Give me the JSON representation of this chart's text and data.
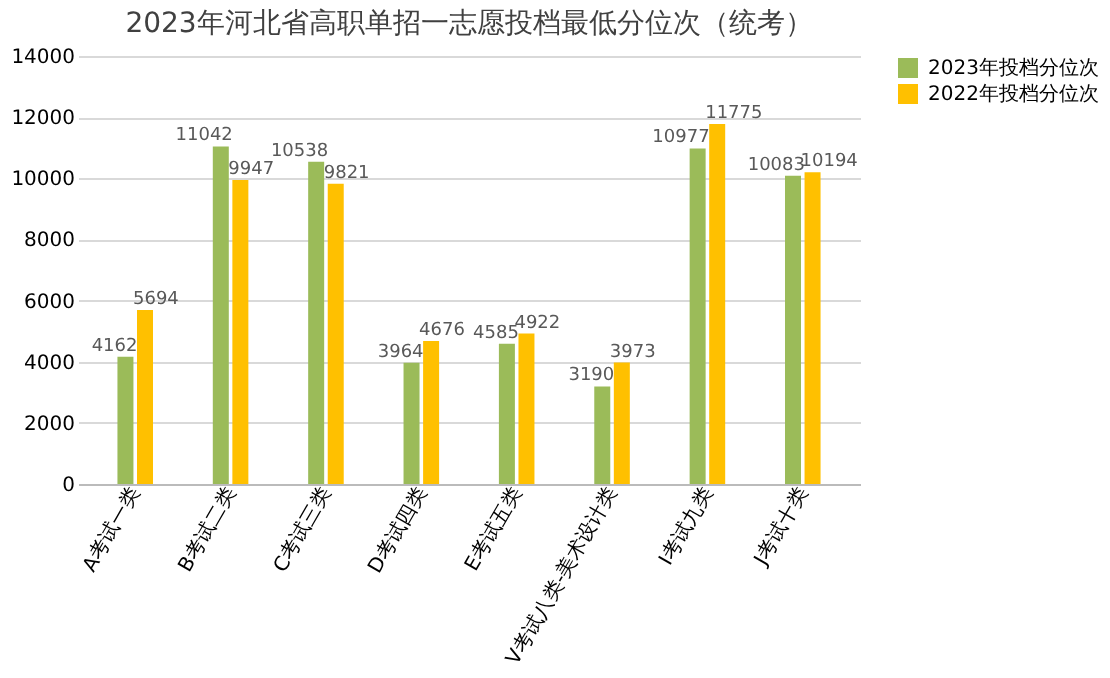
{
  "chart_data": {
    "type": "bar",
    "title": "2023年河北省高职单招一志愿投档最低分位次（统考）",
    "categories": [
      "A考试一类",
      "B考试二类",
      "C考试三类",
      "D考试四类",
      "E考试五类",
      "V考试八类-美术设计类",
      "I考试九类",
      "J考试十类"
    ],
    "series": [
      {
        "name": "2023年投档分位次",
        "color": "#9bbb59",
        "values": [
          4162,
          11042,
          10538,
          3964,
          4585,
          3190,
          10977,
          10083
        ]
      },
      {
        "name": "2022年投档分位次",
        "color": "#ffc000",
        "values": [
          5694,
          9947,
          9821,
          4676,
          4922,
          3973,
          11775,
          10194
        ]
      }
    ],
    "ylim": [
      0,
      14000
    ],
    "yticks": [
      0,
      2000,
      4000,
      6000,
      8000,
      10000,
      12000,
      14000
    ],
    "grid": "y",
    "legend": "right",
    "data_labels": true
  }
}
